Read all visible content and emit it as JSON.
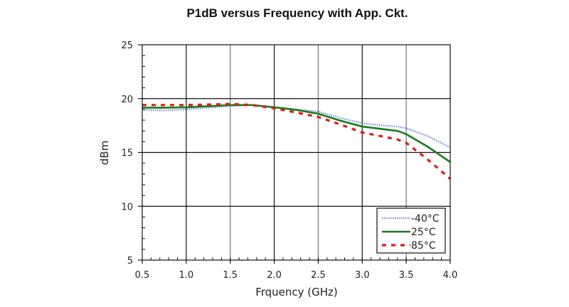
{
  "chart_data": {
    "type": "line",
    "title": "P1dB versus Frequency with App. Ckt.",
    "xlabel": "Frquency (GHz)",
    "ylabel": "dBm",
    "xlim": [
      0.5,
      4.0
    ],
    "ylim": [
      5,
      25
    ],
    "xticks": [
      0.5,
      1.0,
      1.5,
      2.0,
      2.5,
      3.0,
      3.5,
      4.0
    ],
    "xtick_labels": [
      "0.5",
      "1.0",
      "1.5",
      "2.0",
      "2.5",
      "3.0",
      "3.5",
      "4.0"
    ],
    "yticks": [
      5,
      10,
      15,
      20,
      25
    ],
    "ytick_labels": [
      "5",
      "10",
      "15",
      "20",
      "25"
    ],
    "x_minor_step": 0.1,
    "y_minor_step": 1,
    "grid": true,
    "legend_position": "bottom-right",
    "series": [
      {
        "name": "-40°C",
        "color": "#4a5fd0",
        "style": "dotted",
        "x": [
          0.5,
          0.75,
          1.0,
          1.25,
          1.5,
          1.75,
          2.0,
          2.25,
          2.5,
          2.75,
          3.0,
          3.25,
          3.4,
          3.5,
          3.75,
          4.0
        ],
        "y": [
          18.95,
          18.9,
          19.0,
          19.15,
          19.3,
          19.4,
          19.2,
          19.0,
          18.8,
          18.2,
          17.7,
          17.5,
          17.4,
          17.25,
          16.5,
          15.45
        ]
      },
      {
        "name": "25°C",
        "color": "#1a7a1a",
        "style": "solid",
        "x": [
          0.5,
          0.75,
          1.0,
          1.25,
          1.5,
          1.75,
          2.0,
          2.25,
          2.5,
          2.75,
          3.0,
          3.25,
          3.4,
          3.5,
          3.75,
          4.0
        ],
        "y": [
          19.15,
          19.15,
          19.2,
          19.3,
          19.4,
          19.4,
          19.2,
          18.95,
          18.6,
          17.95,
          17.4,
          17.15,
          17.0,
          16.7,
          15.5,
          14.1
        ]
      },
      {
        "name": "85°C",
        "color": "#dd1c1c",
        "style": "dashed",
        "x": [
          0.5,
          0.75,
          1.0,
          1.25,
          1.5,
          1.75,
          2.0,
          2.25,
          2.5,
          2.75,
          3.0,
          3.25,
          3.4,
          3.5,
          3.75,
          4.0
        ],
        "y": [
          19.4,
          19.4,
          19.4,
          19.45,
          19.5,
          19.4,
          19.1,
          18.7,
          18.3,
          17.6,
          16.85,
          16.45,
          16.2,
          15.9,
          14.3,
          12.55
        ]
      }
    ]
  }
}
